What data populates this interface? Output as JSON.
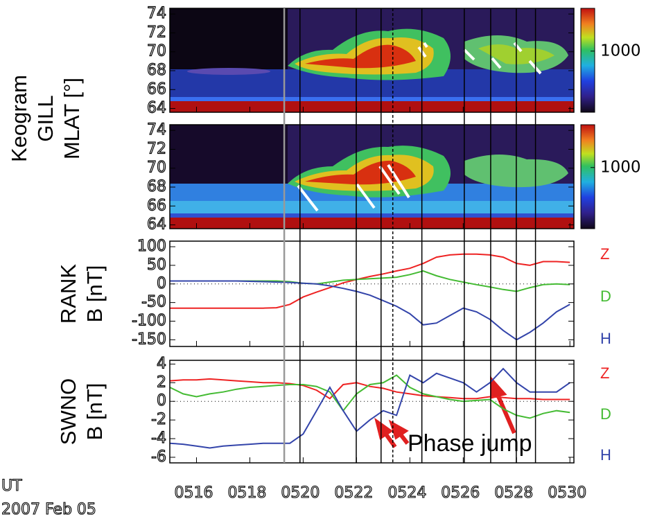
{
  "chart_data": [
    {
      "type": "keogram",
      "ylabel": [
        "Keogram",
        "GILL",
        "MLAT [°]"
      ],
      "ylim": [
        63.6,
        74.6
      ],
      "yticks": [
        64,
        66,
        68,
        70,
        72,
        74
      ],
      "xlim": [
        15,
        30.15
      ],
      "clim": [
        0,
        1700
      ],
      "cticks": [
        1000
      ]
    },
    {
      "type": "keogram",
      "ylim": [
        63.6,
        74.6
      ],
      "yticks": [
        64,
        66,
        68,
        70,
        72,
        74
      ],
      "xlim": [
        15,
        30.15
      ],
      "clim": [
        0,
        1700
      ],
      "cticks": [
        1000
      ]
    },
    {
      "type": "line",
      "ylabel": [
        "RANK",
        "B [nT]"
      ],
      "ylim": [
        -168,
        115
      ],
      "yticks": [
        100,
        50,
        0,
        -50,
        -100,
        -150
      ],
      "xlim": [
        15,
        30.15
      ],
      "x": [
        15,
        15.5,
        16,
        16.5,
        17,
        17.5,
        18,
        18.5,
        19,
        19.5,
        20,
        20.5,
        21,
        21.5,
        22,
        22.5,
        23,
        23.5,
        24,
        24.5,
        25,
        25.5,
        26,
        26.5,
        27,
        27.5,
        28,
        28.5,
        29,
        29.5,
        30
      ],
      "series": [
        {
          "name": "Z",
          "color": "#ee2222",
          "values": [
            -65,
            -65,
            -65,
            -65,
            -65,
            -65,
            -65,
            -65,
            -64,
            -55,
            -35,
            -22,
            -10,
            3,
            12,
            20,
            27,
            35,
            42,
            55,
            72,
            78,
            80,
            80,
            78,
            72,
            55,
            50,
            60,
            60,
            58
          ]
        },
        {
          "name": "D",
          "color": "#44bb33",
          "values": [
            8,
            8,
            8,
            8,
            8,
            8,
            8,
            8,
            8,
            6,
            2,
            0,
            5,
            10,
            12,
            14,
            16,
            18,
            25,
            35,
            22,
            12,
            5,
            -2,
            -8,
            -15,
            -20,
            -10,
            -2,
            0,
            -2
          ]
        },
        {
          "name": "H",
          "color": "#3344aa",
          "values": [
            8,
            8,
            8,
            8,
            8,
            8,
            7,
            6,
            5,
            4,
            2,
            0,
            -5,
            -12,
            -20,
            -30,
            -45,
            -60,
            -80,
            -110,
            -105,
            -85,
            -65,
            -75,
            -95,
            -125,
            -150,
            -130,
            -105,
            -75,
            -55
          ]
        }
      ]
    },
    {
      "type": "line",
      "ylabel": [
        "SWNO",
        "B [nT]"
      ],
      "ylim": [
        -6.6,
        4.4
      ],
      "yticks": [
        4,
        2,
        0,
        -2,
        -4,
        -6
      ],
      "xlim": [
        15,
        30.15
      ],
      "x": [
        15,
        15.5,
        16,
        16.5,
        17,
        17.5,
        18,
        18.5,
        19,
        19.5,
        20,
        20.5,
        21,
        21.5,
        22,
        22.5,
        23,
        23.5,
        24,
        24.5,
        25,
        25.5,
        26,
        26.5,
        27,
        27.5,
        28,
        28.5,
        29,
        29.5,
        30
      ],
      "series": [
        {
          "name": "Z",
          "color": "#ee2222",
          "values": [
            2.2,
            2.3,
            2.3,
            2.4,
            2.3,
            2.2,
            2.1,
            2.0,
            2.0,
            1.9,
            1.7,
            1.2,
            0.3,
            1.8,
            2.0,
            1.6,
            1.4,
            1.0,
            0.8,
            0.6,
            0.5,
            0.4,
            0.3,
            0.3,
            0.5,
            0.4,
            0.3,
            0.3,
            0.2,
            0.2,
            0.2
          ]
        },
        {
          "name": "D",
          "color": "#44bb33",
          "values": [
            1.5,
            0.8,
            0.5,
            0.8,
            1.0,
            1.3,
            1.5,
            1.6,
            1.7,
            1.8,
            1.8,
            1.6,
            1.0,
            -1.0,
            0.8,
            1.8,
            2.0,
            2.8,
            1.5,
            0.8,
            0.5,
            0.2,
            0.0,
            0.1,
            0.2,
            -0.8,
            -1.5,
            -1.8,
            -1.3,
            -1.0,
            -1.2
          ]
        },
        {
          "name": "H",
          "color": "#3344aa",
          "values": [
            -4.5,
            -4.6,
            -4.8,
            -5.0,
            -4.8,
            -4.7,
            -4.6,
            -4.5,
            -4.5,
            -4.5,
            -3.5,
            -1.0,
            1.5,
            -1.0,
            -3.2,
            -2.0,
            -1.0,
            -1.5,
            2.8,
            2.0,
            3.0,
            2.5,
            2.0,
            1.0,
            2.0,
            3.5,
            2.0,
            1.0,
            1.0,
            1.0,
            2.0
          ]
        }
      ],
      "annotation": "Phase jump",
      "xlabel": "UT",
      "date": "2007 Feb 05",
      "xticks": [
        {
          "value": 16,
          "label": "0516"
        },
        {
          "value": 18,
          "label": "0518"
        },
        {
          "value": 20,
          "label": "0520"
        },
        {
          "value": 22,
          "label": "0522"
        },
        {
          "value": 24,
          "label": "0524"
        },
        {
          "value": 26,
          "label": "0526"
        },
        {
          "value": 28,
          "label": "0528"
        },
        {
          "value": 30,
          "label": "0530"
        }
      ]
    }
  ],
  "time_markers": [
    {
      "x": 19.29,
      "color": "#999999",
      "dashed": false
    },
    {
      "x": 19.88,
      "color": "#000000",
      "dashed": false
    },
    {
      "x": 21.99,
      "color": "#000000",
      "dashed": false
    },
    {
      "x": 22.92,
      "color": "#000000",
      "dashed": false
    },
    {
      "x": 23.36,
      "color": "#000000",
      "dashed": true
    },
    {
      "x": 24.45,
      "color": "#000000",
      "dashed": false
    },
    {
      "x": 26.04,
      "color": "#000000",
      "dashed": false
    },
    {
      "x": 27.03,
      "color": "#000000",
      "dashed": false
    },
    {
      "x": 27.99,
      "color": "#000000",
      "dashed": false
    },
    {
      "x": 28.71,
      "color": "#000000",
      "dashed": false
    }
  ]
}
